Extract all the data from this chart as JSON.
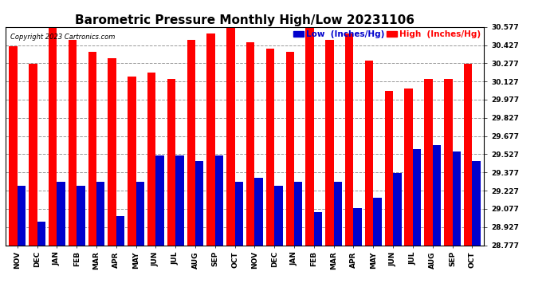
{
  "title": "Barometric Pressure Monthly High/Low 20231106",
  "copyright": "Copyright 2023 Cartronics.com",
  "legend_low": "Low  (Inches/Hg)",
  "legend_high": "High  (Inches/Hg)",
  "months": [
    "NOV",
    "DEC",
    "JAN",
    "FEB",
    "MAR",
    "APR",
    "MAY",
    "JUN",
    "JUL",
    "AUG",
    "SEP",
    "OCT",
    "NOV",
    "DEC",
    "JAN",
    "FEB",
    "MAR",
    "APR",
    "MAY",
    "JUN",
    "JUL",
    "AUG",
    "SEP",
    "OCT"
  ],
  "high_values": [
    30.42,
    30.27,
    30.57,
    30.47,
    30.37,
    30.32,
    30.17,
    30.2,
    30.15,
    30.47,
    30.52,
    30.57,
    30.45,
    30.4,
    30.37,
    30.57,
    30.47,
    30.52,
    30.3,
    30.05,
    30.07,
    30.15,
    30.15,
    30.27
  ],
  "low_values": [
    29.27,
    28.97,
    29.3,
    29.27,
    29.3,
    29.02,
    29.3,
    29.52,
    29.52,
    29.47,
    29.52,
    29.3,
    29.33,
    29.27,
    29.3,
    29.05,
    29.3,
    29.08,
    29.17,
    29.37,
    29.57,
    29.6,
    29.55,
    29.47
  ],
  "high_color": "#ff0000",
  "low_color": "#0000cc",
  "bg_color": "#ffffff",
  "plot_bg_color": "#ffffff",
  "grid_color": "#999999",
  "yticks": [
    28.777,
    28.927,
    29.077,
    29.227,
    29.377,
    29.527,
    29.677,
    29.827,
    29.977,
    30.127,
    30.277,
    30.427,
    30.577
  ],
  "ymin": 28.777,
  "ymax": 30.577,
  "bar_width": 0.42,
  "title_fontsize": 11,
  "tick_fontsize": 6.5,
  "legend_fontsize": 7.5
}
